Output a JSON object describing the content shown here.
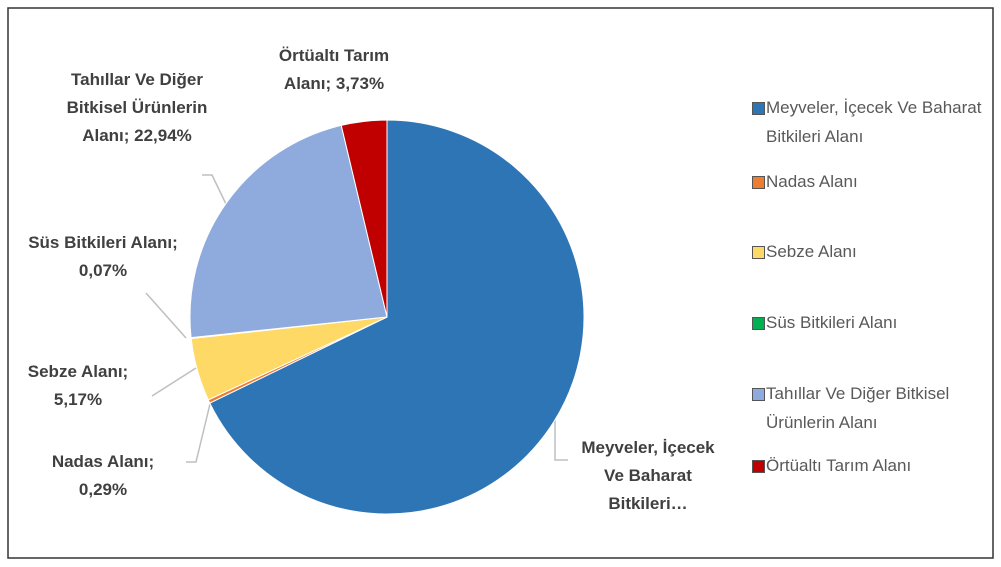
{
  "chart_data": {
    "type": "pie",
    "categories": [
      "Meyveler, İçecek Ve Baharat Bitkileri Alanı",
      "Nadas Alanı",
      "Sebze Alanı",
      "Süs Bitkileri Alanı",
      "Tahıllar Ve Diğer Bitkisel Ürünlerin Alanı",
      "Örtüaltı Tarım Alanı"
    ],
    "values": [
      67.8,
      0.29,
      5.17,
      0.07,
      22.94,
      3.73
    ],
    "value_labels": [
      "Meyveler, İçecek Ve Baharat Bitkileri…",
      "Nadas Alanı; 0,29%",
      "Sebze Alanı; 5,17%",
      "Süs Bitkileri Alanı; 0,07%",
      "Tahıllar Ve Diğer Bitkisel Ürünlerin Alanı; 22,94%",
      "Örtüaltı Tarım Alanı; 3,73%"
    ],
    "colors": [
      "#2e75b6",
      "#ed7d31",
      "#ffd966",
      "#00b050",
      "#8faadc",
      "#c00000"
    ],
    "legend": "right"
  }
}
